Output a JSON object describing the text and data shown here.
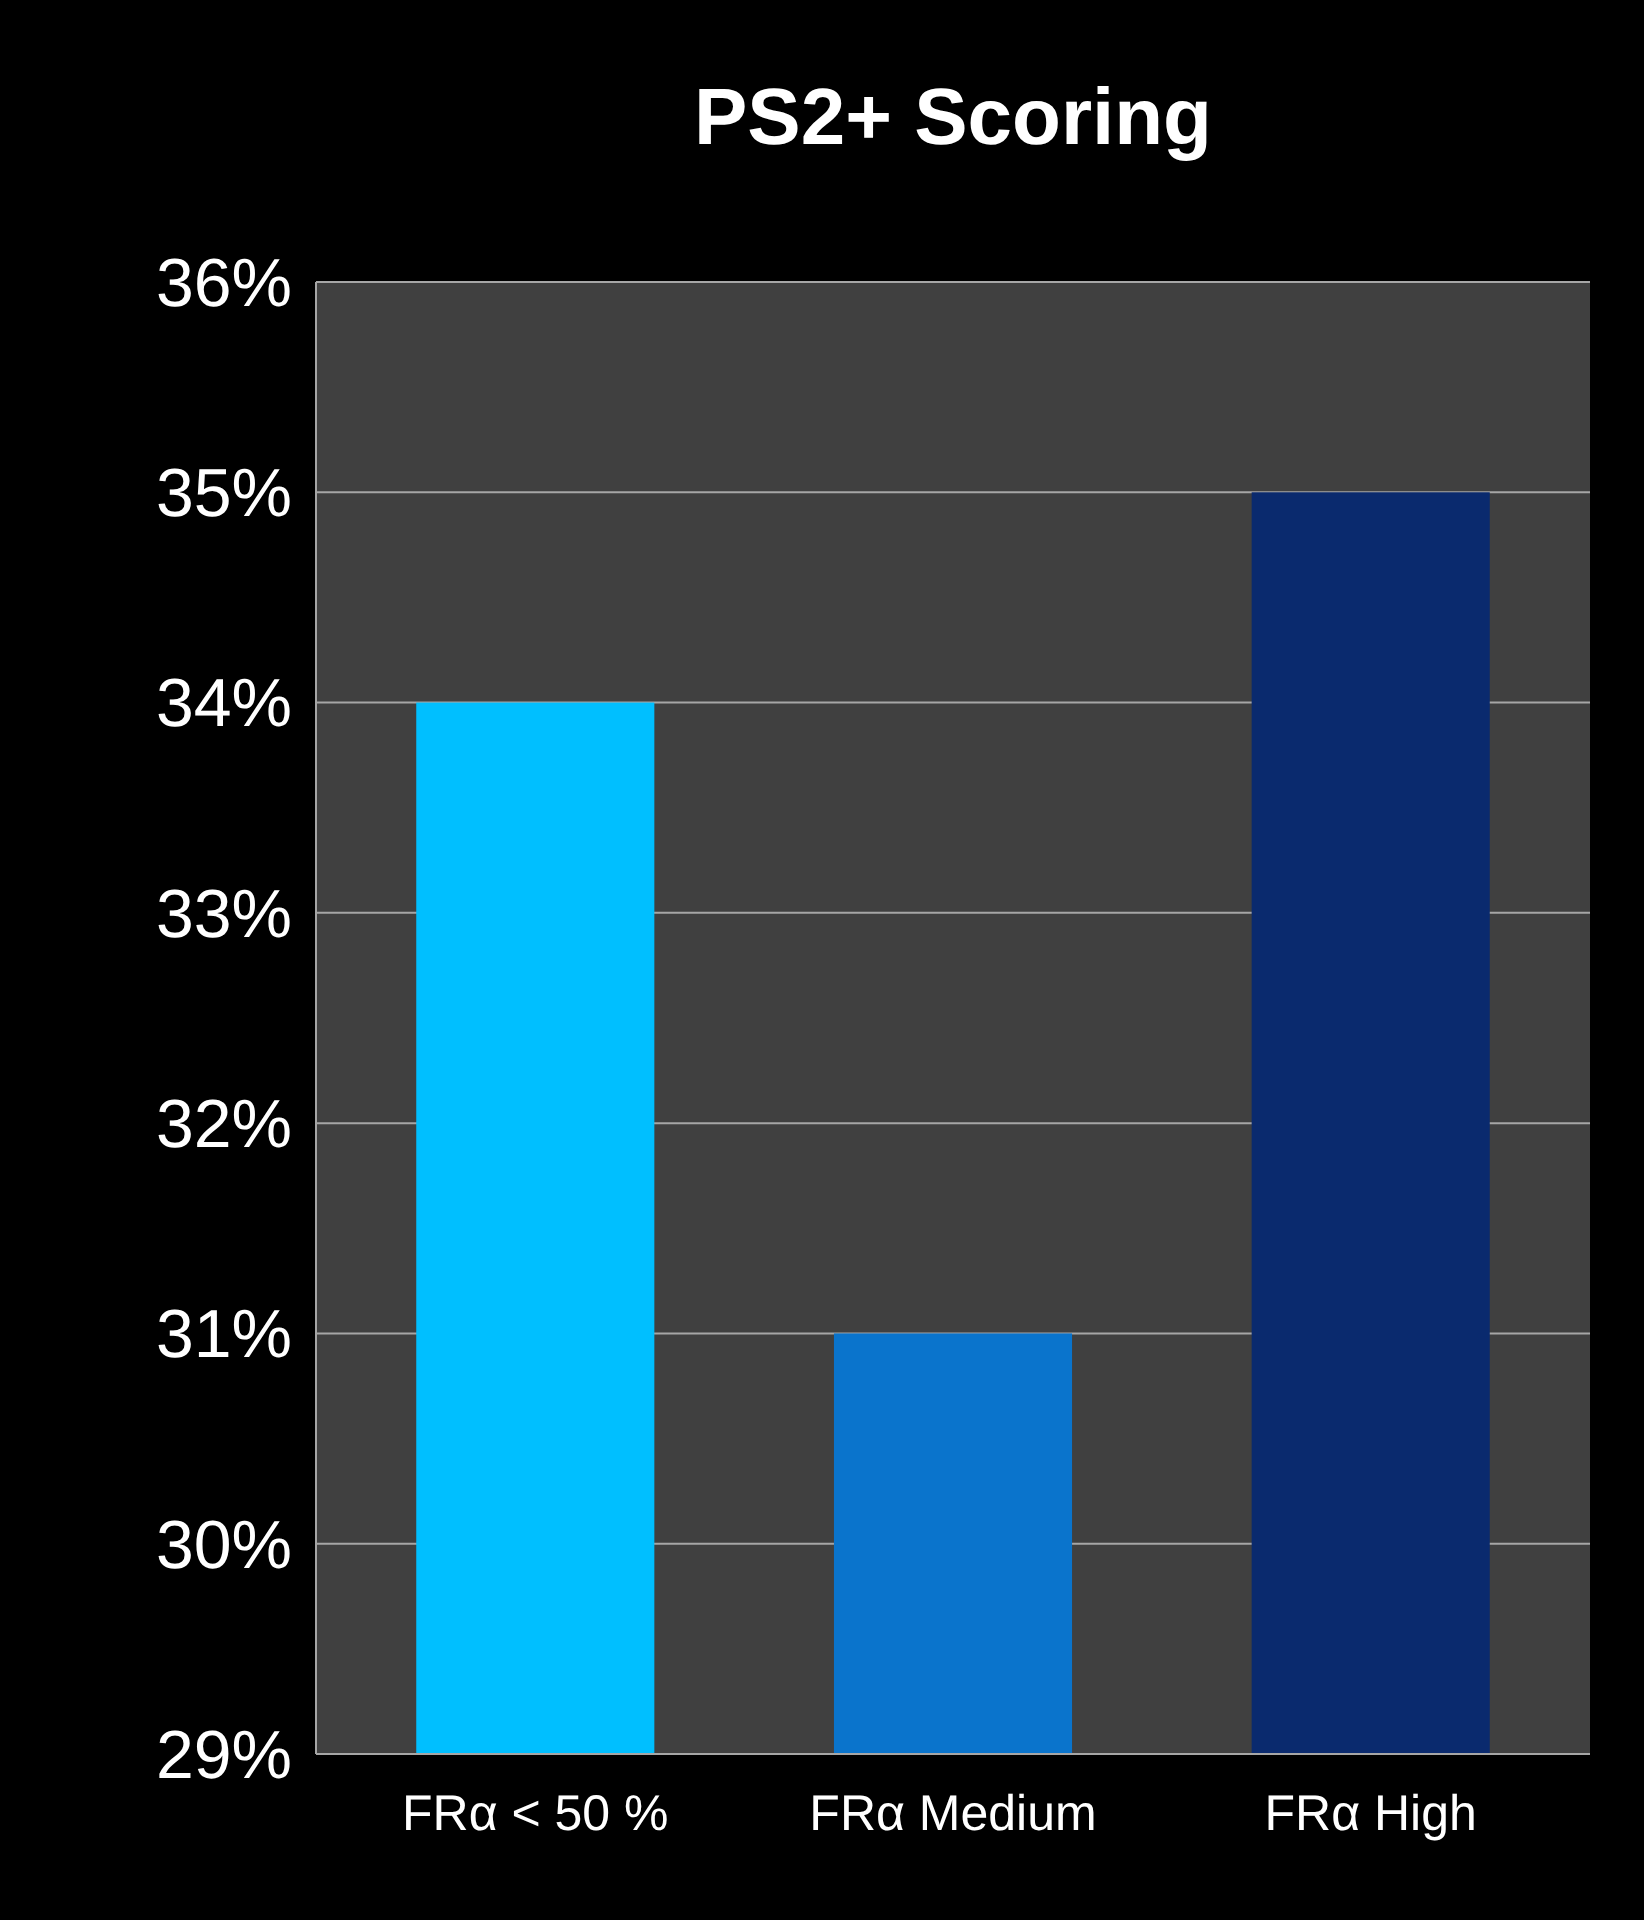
{
  "chart_data": {
    "type": "bar",
    "title": "PS2+ Scoring",
    "categories": [
      "FRα < 50 %",
      "FRα Medium",
      "FRα High"
    ],
    "values": [
      34,
      31,
      35
    ],
    "colors": [
      "#00bfff",
      "#0a74cc",
      "#0a2a6e"
    ],
    "ylim": [
      29,
      36
    ],
    "yticks": [
      {
        "value": 29,
        "label": "29%"
      },
      {
        "value": 30,
        "label": "30%"
      },
      {
        "value": 31,
        "label": "31%"
      },
      {
        "value": 32,
        "label": "32%"
      },
      {
        "value": 33,
        "label": "33%"
      },
      {
        "value": 34,
        "label": "34%"
      },
      {
        "value": 35,
        "label": "35%"
      },
      {
        "value": 36,
        "label": "36%"
      }
    ],
    "grid": "y"
  }
}
